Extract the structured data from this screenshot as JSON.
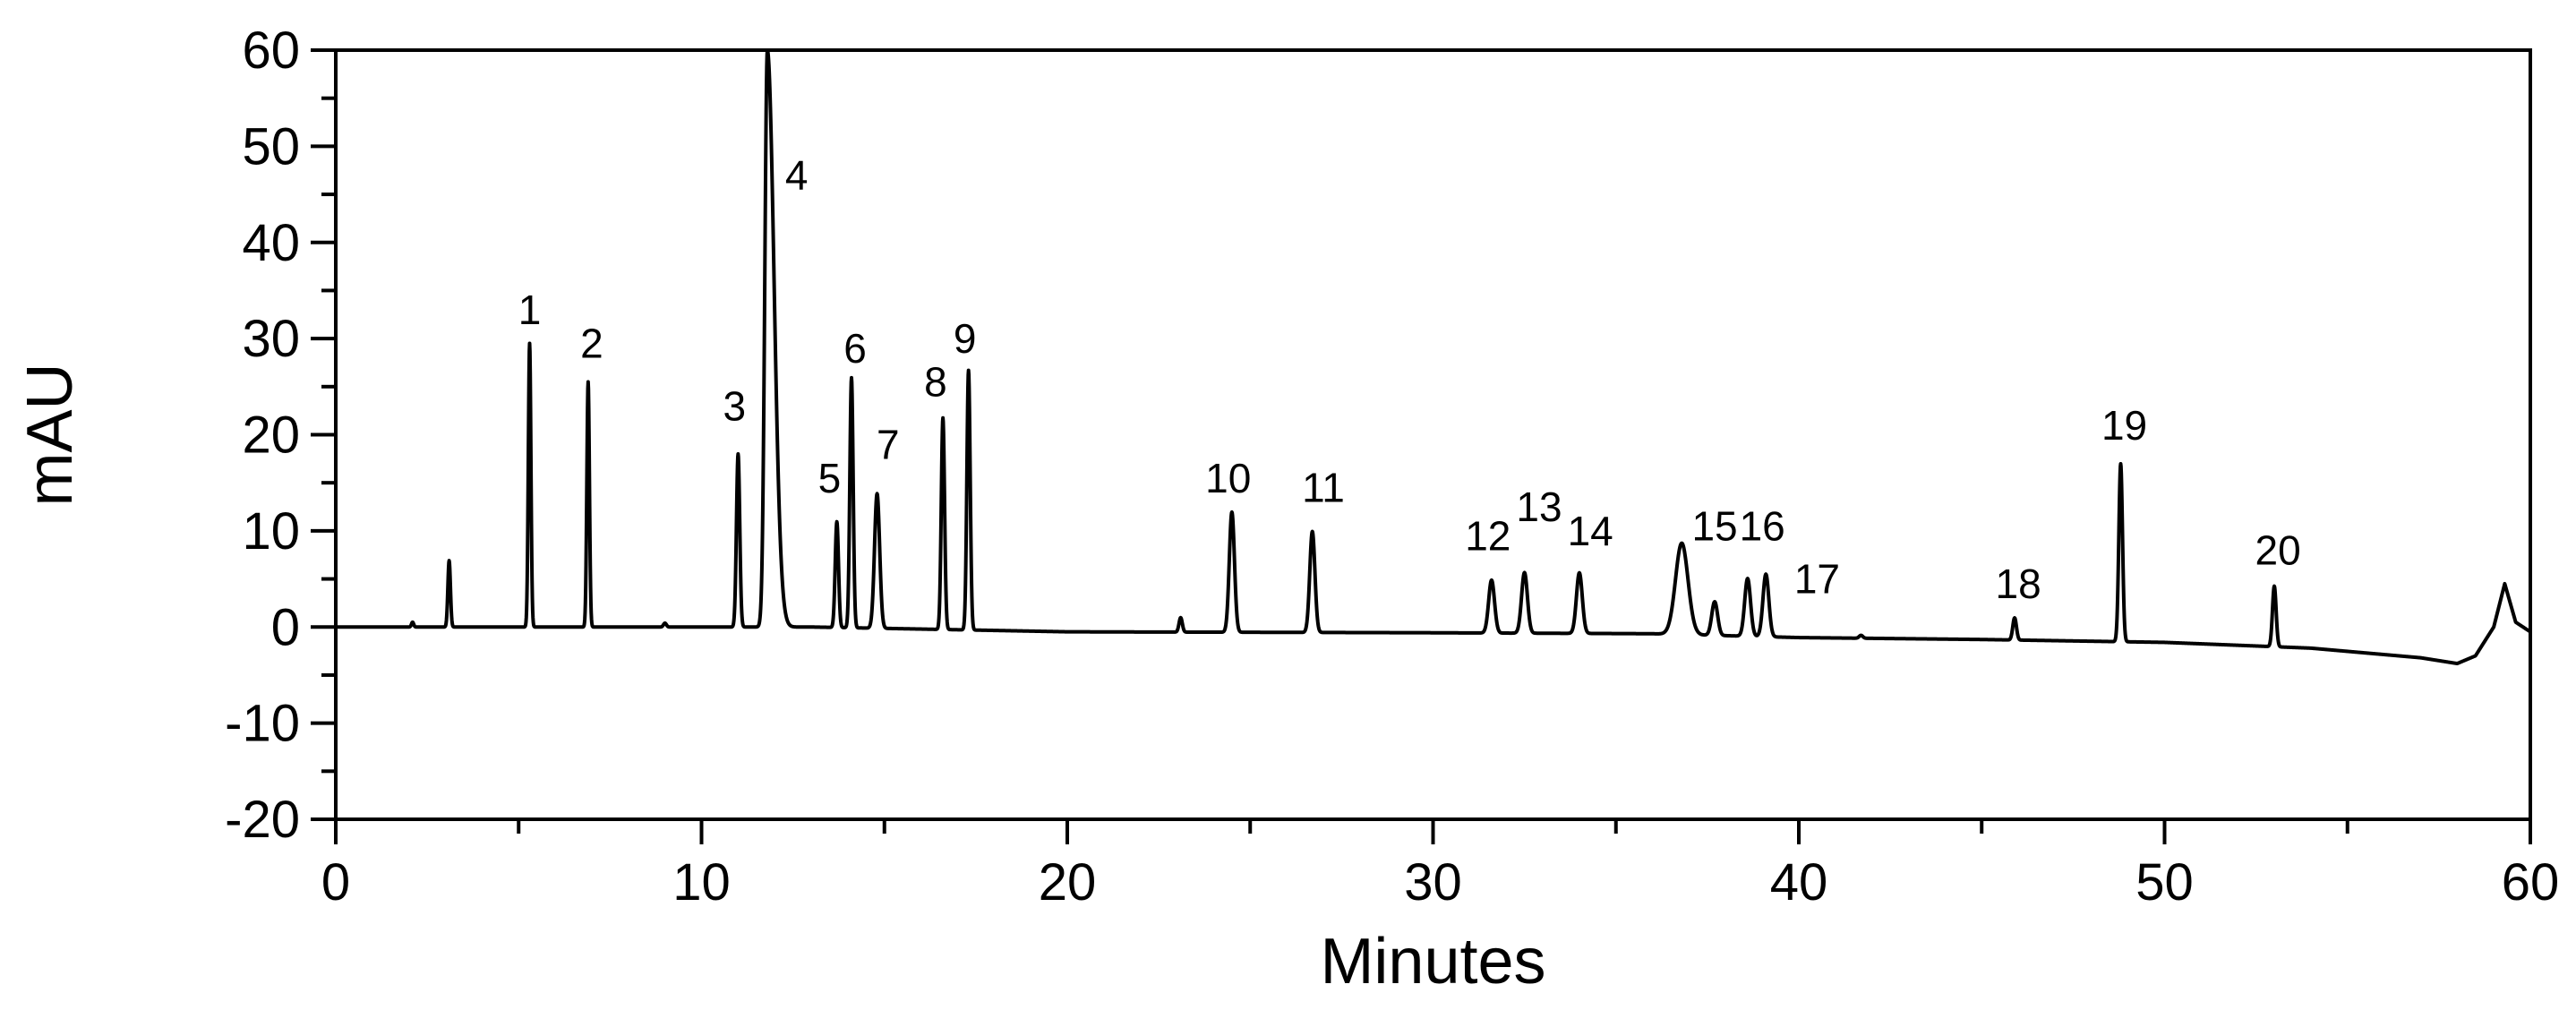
{
  "chart_data": {
    "type": "line",
    "title": "",
    "xlabel": "Minutes",
    "ylabel": "mAU",
    "xlim": [
      0,
      60
    ],
    "ylim": [
      -20,
      60
    ],
    "x_ticks": [
      0,
      10,
      20,
      30,
      40,
      50,
      60
    ],
    "y_ticks": [
      -20,
      -10,
      0,
      10,
      20,
      30,
      40,
      50,
      60
    ],
    "x_tick_labels": [
      "0",
      "10",
      "20",
      "30",
      "40",
      "50",
      "60"
    ],
    "y_tick_labels": [
      "-20",
      "-10",
      "0",
      "10",
      "20",
      "30",
      "40",
      "50",
      "60"
    ],
    "grid": false,
    "legend": "none",
    "line_color": "#000000",
    "series": [
      {
        "baseline": [
          [
            0,
            0.0
          ],
          [
            2,
            0.0
          ],
          [
            13,
            0.0
          ],
          [
            20,
            -0.5
          ],
          [
            30,
            -0.6
          ],
          [
            36,
            -0.7
          ],
          [
            40,
            -1.1
          ],
          [
            45,
            -1.3
          ],
          [
            50,
            -1.6
          ],
          [
            54,
            -2.2
          ],
          [
            57,
            -3.2
          ],
          [
            58,
            -3.8
          ],
          [
            58.5,
            -3.0
          ],
          [
            59,
            0.0
          ],
          [
            59.3,
            4.5
          ],
          [
            59.6,
            0.5
          ],
          [
            60,
            -0.5
          ]
        ],
        "peaks": [
          {
            "x": 2.1,
            "y": 0.5,
            "w": 0.03
          },
          {
            "x": 3.1,
            "y": 6.9,
            "w": 0.035
          },
          {
            "x": 5.3,
            "y": 29.5,
            "w": 0.035
          },
          {
            "x": 6.9,
            "y": 25.5,
            "w": 0.035
          },
          {
            "x": 9.0,
            "y": 0.4,
            "w": 0.04
          },
          {
            "x": 11.0,
            "y": 18.0,
            "w": 0.045
          },
          {
            "x": 11.8,
            "y": 60,
            "w": 0.07
          },
          {
            "x": 13.7,
            "y": 11.0,
            "w": 0.045
          },
          {
            "x": 14.1,
            "y": 26.0,
            "w": 0.045
          },
          {
            "x": 14.8,
            "y": 14.0,
            "w": 0.07
          },
          {
            "x": 16.6,
            "y": 22.0,
            "w": 0.045
          },
          {
            "x": 17.3,
            "y": 27.0,
            "w": 0.045
          },
          {
            "x": 23.1,
            "y": 1.5,
            "w": 0.045
          },
          {
            "x": 24.5,
            "y": 12.5,
            "w": 0.07
          },
          {
            "x": 26.7,
            "y": 10.5,
            "w": 0.07
          },
          {
            "x": 31.6,
            "y": 5.5,
            "w": 0.08
          },
          {
            "x": 32.5,
            "y": 6.3,
            "w": 0.08
          },
          {
            "x": 34.0,
            "y": 6.3,
            "w": 0.08
          },
          {
            "x": 36.8,
            "y": 9.5,
            "w": 0.17
          },
          {
            "x": 37.7,
            "y": 3.5,
            "w": 0.08
          },
          {
            "x": 38.6,
            "y": 6.0,
            "w": 0.08
          },
          {
            "x": 39.1,
            "y": 6.5,
            "w": 0.08
          },
          {
            "x": 41.7,
            "y": 0.3,
            "w": 0.05
          },
          {
            "x": 45.9,
            "y": 2.3,
            "w": 0.05
          },
          {
            "x": 48.8,
            "y": 18.5,
            "w": 0.05
          },
          {
            "x": 53.0,
            "y": 6.3,
            "w": 0.05
          }
        ]
      }
    ],
    "annotations": [
      {
        "text": "1",
        "x": 5.3,
        "y": 31.5
      },
      {
        "text": "2",
        "x": 7.0,
        "y": 28.0
      },
      {
        "text": "3",
        "x": 10.9,
        "y": 21.5
      },
      {
        "text": "4",
        "x": 12.6,
        "y": 45.5
      },
      {
        "text": "5",
        "x": 13.5,
        "y": 14.0
      },
      {
        "text": "6",
        "x": 14.2,
        "y": 27.5
      },
      {
        "text": "7",
        "x": 15.1,
        "y": 17.5
      },
      {
        "text": "8",
        "x": 16.4,
        "y": 24.0
      },
      {
        "text": "9",
        "x": 17.2,
        "y": 28.5
      },
      {
        "text": "10",
        "x": 24.4,
        "y": 14.0
      },
      {
        "text": "11",
        "x": 27.0,
        "y": 13.0
      },
      {
        "text": "12",
        "x": 31.5,
        "y": 8.0
      },
      {
        "text": "13",
        "x": 32.9,
        "y": 11.0
      },
      {
        "text": "14",
        "x": 34.3,
        "y": 8.5
      },
      {
        "text": "15",
        "x": 37.7,
        "y": 9.0
      },
      {
        "text": "16",
        "x": 39.0,
        "y": 9.0
      },
      {
        "text": "17",
        "x": 40.5,
        "y": 3.5
      },
      {
        "text": "18",
        "x": 46.0,
        "y": 3.0
      },
      {
        "text": "19",
        "x": 48.9,
        "y": 19.5
      },
      {
        "text": "20",
        "x": 53.1,
        "y": 6.5
      }
    ]
  }
}
